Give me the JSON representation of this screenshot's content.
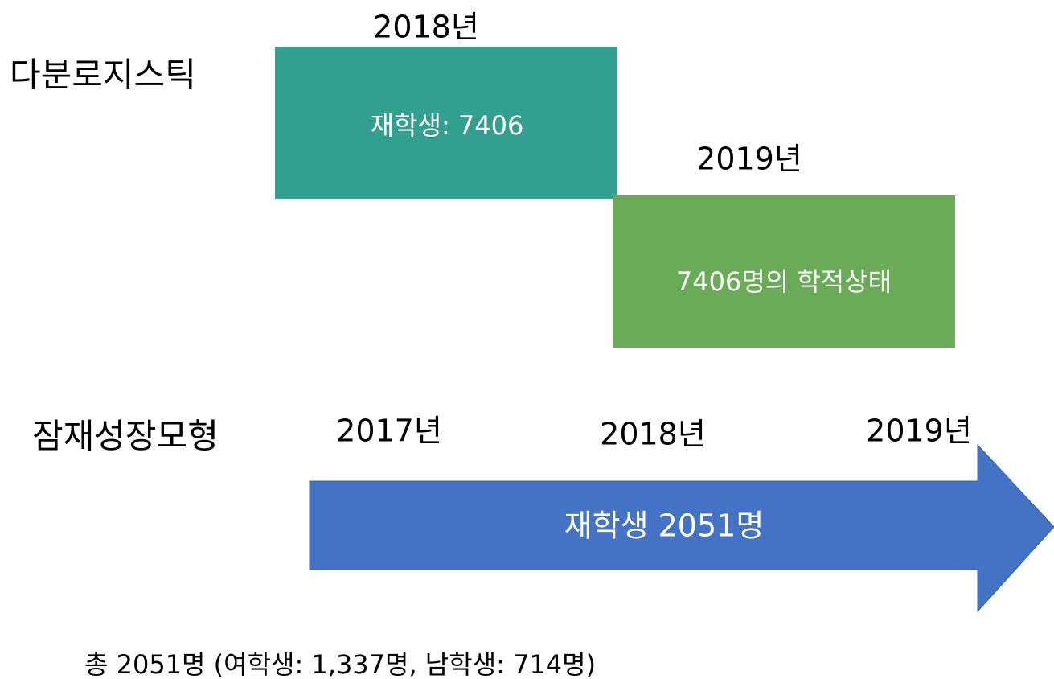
{
  "multinomial": {
    "label": "다분로지스틱",
    "boxes": [
      {
        "year": "2018년",
        "text": "재학생: 7406"
      },
      {
        "year": "2019년",
        "text": "7406명의 학적상태"
      }
    ]
  },
  "growth": {
    "label": "잠재성장모형",
    "years": [
      "2017년",
      "2018년",
      "2019년"
    ],
    "arrow": "재학생 2051명"
  },
  "footer": "총 2051명 (여학생: 1,337명, 남학생: 714명)"
}
